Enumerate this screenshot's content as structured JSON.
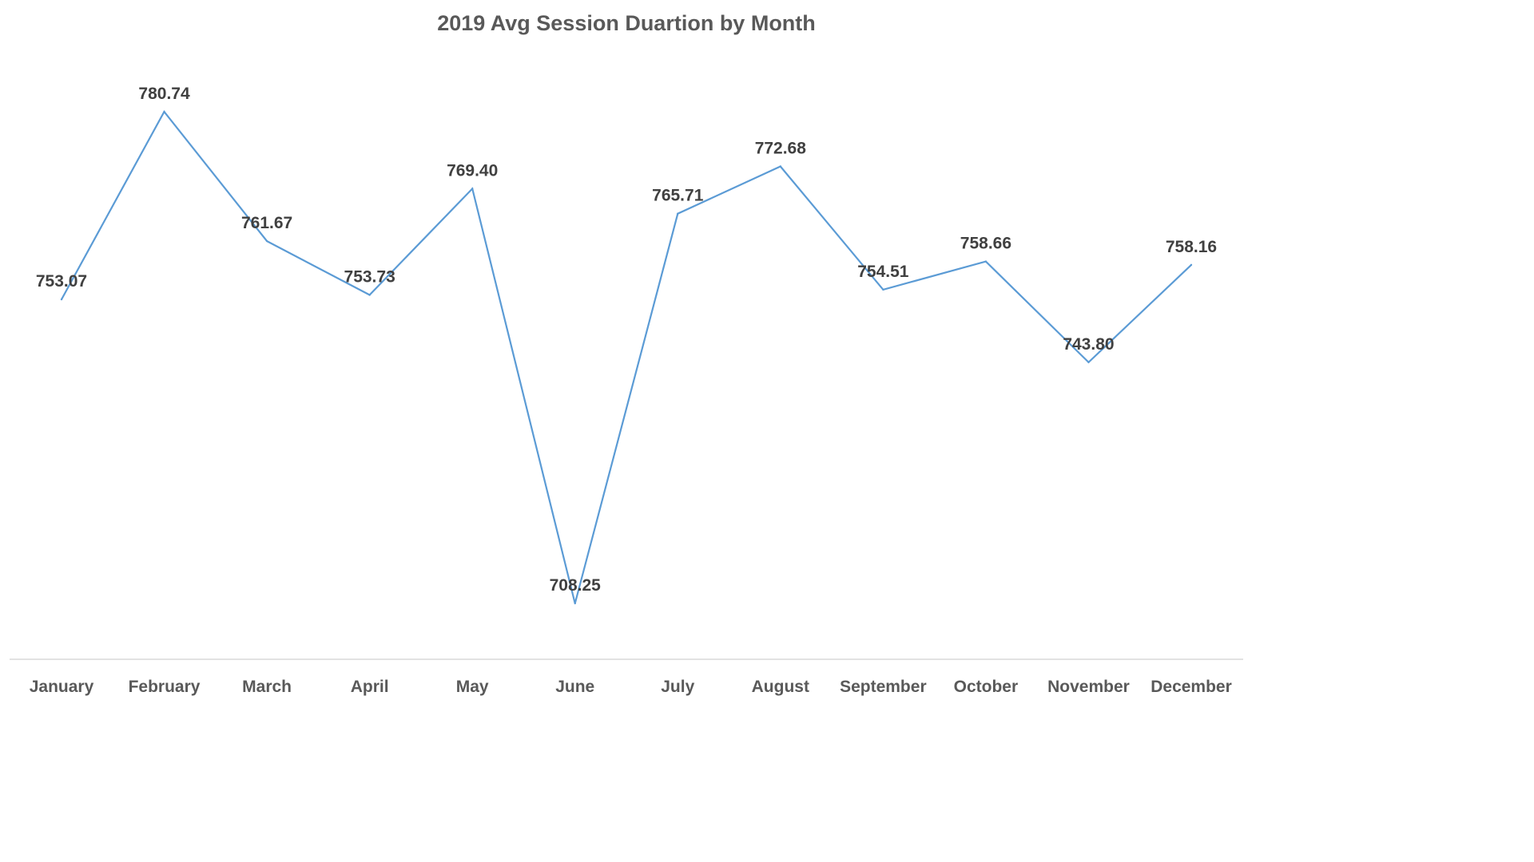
{
  "chart_data": {
    "type": "line",
    "title": "2019 Avg Session Duartion by Month",
    "xlabel": "",
    "ylabel": "",
    "categories": [
      "January",
      "February",
      "March",
      "April",
      "May",
      "June",
      "July",
      "August",
      "September",
      "October",
      "November",
      "December"
    ],
    "series": [
      {
        "values": [
          753.07,
          780.74,
          761.67,
          753.73,
          769.4,
          708.25,
          765.71,
          772.68,
          754.51,
          758.66,
          743.8,
          758.16
        ],
        "labels": [
          "753.07",
          "780.74",
          "761.67",
          "753.73",
          "769.40",
          "708.25",
          "765.71",
          "772.68",
          "754.51",
          "758.66",
          "743.80",
          "758.16"
        ],
        "color": "#5b9bd5"
      }
    ],
    "grid": false,
    "legend": "none",
    "data_labels": "above"
  }
}
